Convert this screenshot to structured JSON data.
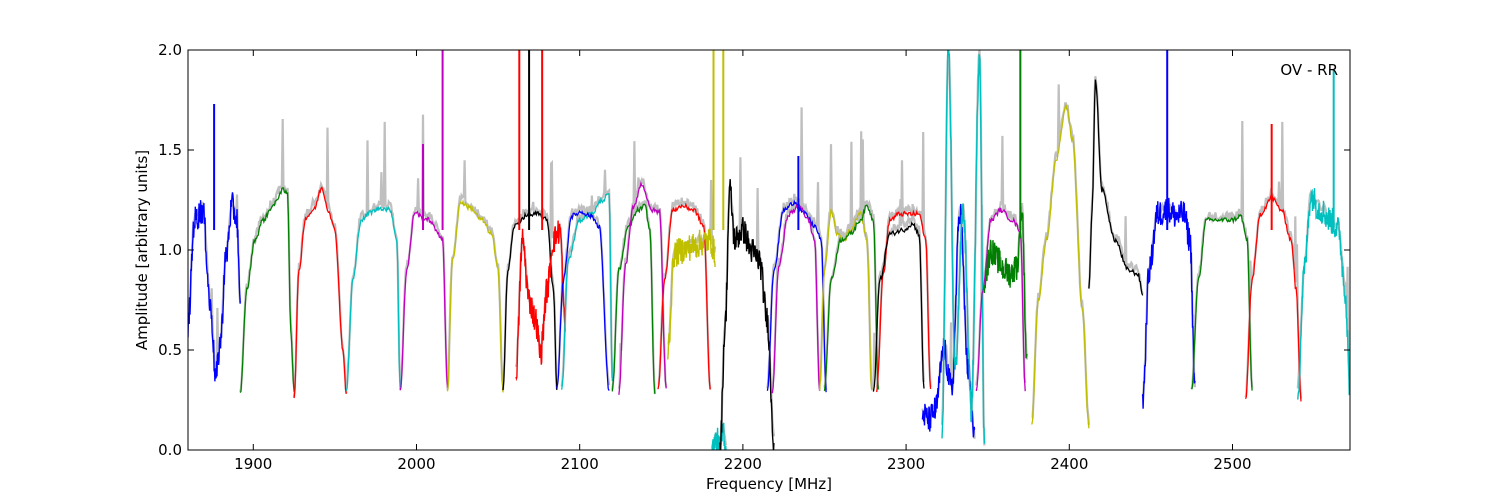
{
  "chart_data": {
    "type": "line",
    "title": "",
    "annotation": "OV - RR",
    "xlabel": "Frequency [MHz]",
    "ylabel": "Amplitude [arbitrary units]",
    "xlim": [
      1860,
      2572
    ],
    "ylim": [
      0.0,
      2.0
    ],
    "xticks": [
      1900,
      2000,
      2100,
      2200,
      2300,
      2400,
      2500
    ],
    "xtick_labels": [
      "1900",
      "2000",
      "2100",
      "2200",
      "2300",
      "2400",
      "2500"
    ],
    "yticks": [
      0.0,
      0.5,
      1.0,
      1.5,
      2.0
    ],
    "ytick_labels": [
      "0.0",
      "0.5",
      "1.0",
      "1.5",
      "2.0"
    ],
    "grid": false,
    "background_color": "#bfbfbf",
    "series": [
      {
        "color": "#0000ff",
        "kind": "noisy",
        "x": [
          1860,
          1864,
          1869,
          1874,
          1877,
          1880,
          1883,
          1887,
          1890,
          1892
        ],
        "y": [
          0.62,
          1.15,
          1.2,
          0.7,
          0.36,
          0.55,
          0.95,
          1.22,
          1.15,
          0.7
        ]
      },
      {
        "color": "#007f00",
        "kind": "band",
        "x": [
          1892,
          1896,
          1901,
          1906,
          1912,
          1918,
          1921,
          1923,
          1925
        ],
        "y": [
          0.28,
          0.8,
          1.05,
          1.15,
          1.22,
          1.3,
          1.28,
          0.6,
          0.3
        ]
      },
      {
        "color": "#ff0000",
        "kind": "band",
        "x": [
          1925,
          1928,
          1932,
          1937,
          1942,
          1946,
          1950,
          1955,
          1957
        ],
        "y": [
          0.25,
          0.9,
          1.16,
          1.2,
          1.31,
          1.2,
          1.1,
          0.5,
          0.27
        ]
      },
      {
        "color": "#00bfbf",
        "kind": "band",
        "x": [
          1957,
          1961,
          1966,
          1972,
          1978,
          1984,
          1988,
          1990
        ],
        "y": [
          0.29,
          0.85,
          1.15,
          1.19,
          1.21,
          1.2,
          1.05,
          0.3
        ]
      },
      {
        "color": "#bf00bf",
        "kind": "band",
        "x": [
          1990,
          1994,
          1999,
          2004,
          2008,
          2012,
          2016,
          2019
        ],
        "y": [
          0.29,
          0.9,
          1.19,
          1.16,
          1.15,
          1.1,
          1.05,
          0.32
        ]
      },
      {
        "color": "#bfbf00",
        "kind": "band",
        "x": [
          2019,
          2022,
          2027,
          2033,
          2040,
          2046,
          2050,
          2053
        ],
        "y": [
          0.29,
          0.95,
          1.24,
          1.21,
          1.15,
          1.08,
          0.9,
          0.3
        ]
      },
      {
        "color": "#000000",
        "kind": "band",
        "x": [
          2053,
          2056,
          2060,
          2067,
          2074,
          2080,
          2084,
          2086
        ],
        "y": [
          0.3,
          0.9,
          1.12,
          1.17,
          1.18,
          1.15,
          0.8,
          0.3
        ]
      },
      {
        "color": "#ff0000",
        "kind": "noisy",
        "x": [
          2061,
          2065,
          2069,
          2073,
          2076,
          2080,
          2084,
          2088,
          2091
        ],
        "y": [
          0.4,
          1.05,
          0.75,
          0.65,
          0.48,
          0.8,
          1.05,
          1.1,
          0.62
        ]
      },
      {
        "color": "#00bfbf",
        "kind": "band",
        "x": [
          2089,
          2093,
          2100,
          2107,
          2114,
          2118,
          2120
        ],
        "y": [
          0.3,
          0.95,
          1.15,
          1.18,
          1.25,
          1.28,
          0.35
        ]
      },
      {
        "color": "#0000ff",
        "kind": "band",
        "x": [
          2086,
          2090,
          2095,
          2101,
          2107,
          2112,
          2118
        ],
        "y": [
          0.3,
          0.85,
          1.17,
          1.19,
          1.17,
          1.12,
          0.3
        ]
      },
      {
        "color": "#007f00",
        "kind": "band",
        "x": [
          2120,
          2124,
          2130,
          2136,
          2140,
          2143,
          2146
        ],
        "y": [
          0.3,
          0.9,
          1.12,
          1.2,
          1.22,
          1.1,
          0.28
        ]
      },
      {
        "color": "#bf00bf",
        "kind": "band",
        "x": [
          2124,
          2128,
          2133,
          2138,
          2144,
          2149,
          2153
        ],
        "y": [
          0.28,
          0.92,
          1.22,
          1.33,
          1.2,
          1.19,
          0.3
        ]
      },
      {
        "color": "#ff0000",
        "kind": "band",
        "x": [
          2148,
          2152,
          2157,
          2163,
          2170,
          2176,
          2180
        ],
        "y": [
          0.3,
          0.85,
          1.2,
          1.22,
          1.2,
          1.12,
          0.3
        ]
      },
      {
        "color": "#bfbf00",
        "kind": "noisy",
        "x": [
          2154,
          2158,
          2163,
          2170,
          2176,
          2180,
          2183
        ],
        "y": [
          0.5,
          0.98,
          1.0,
          1.02,
          1.04,
          1.05,
          0.98
        ]
      },
      {
        "color": "#00bfbf",
        "kind": "noisy",
        "x": [
          2181,
          2184,
          2186,
          2188,
          2190
        ],
        "y": [
          0.0,
          0.05,
          0.0,
          0.1,
          0.0
        ]
      },
      {
        "color": "#000000",
        "kind": "noisy",
        "x": [
          2186,
          2189,
          2192,
          2195,
          2200,
          2205,
          2210,
          2215,
          2219
        ],
        "y": [
          0.0,
          0.6,
          1.3,
          1.05,
          1.1,
          1.0,
          0.95,
          0.65,
          0.05
        ]
      },
      {
        "color": "#0000ff",
        "kind": "band",
        "x": [
          2215,
          2219,
          2225,
          2232,
          2238,
          2244,
          2248,
          2251
        ],
        "y": [
          0.3,
          0.9,
          1.2,
          1.24,
          1.18,
          1.12,
          1.05,
          0.3
        ]
      },
      {
        "color": "#bf00bf",
        "kind": "band",
        "x": [
          2218,
          2222,
          2228,
          2235,
          2240,
          2244,
          2247
        ],
        "y": [
          0.28,
          0.92,
          1.18,
          1.22,
          1.15,
          1.05,
          0.3
        ]
      },
      {
        "color": "#bfbf00",
        "kind": "band",
        "x": [
          2247,
          2250,
          2254,
          2258,
          2262,
          2266,
          2272,
          2276,
          2279
        ],
        "y": [
          0.3,
          0.9,
          1.19,
          1.08,
          1.05,
          1.1,
          1.19,
          1.05,
          0.29
        ]
      },
      {
        "color": "#007f00",
        "kind": "band",
        "x": [
          2250,
          2254,
          2260,
          2266,
          2272,
          2276,
          2280,
          2283
        ],
        "y": [
          0.3,
          0.85,
          1.05,
          1.08,
          1.15,
          1.22,
          1.15,
          0.3
        ]
      },
      {
        "color": "#ff0000",
        "kind": "band",
        "x": [
          2282,
          2286,
          2290,
          2296,
          2303,
          2308,
          2312,
          2315
        ],
        "y": [
          0.3,
          0.88,
          1.15,
          1.18,
          1.18,
          1.18,
          1.05,
          0.3
        ]
      },
      {
        "color": "#000000",
        "kind": "band",
        "x": [
          2280,
          2284,
          2290,
          2298,
          2304,
          2308,
          2311
        ],
        "y": [
          0.29,
          0.85,
          1.08,
          1.1,
          1.13,
          1.08,
          0.3
        ]
      },
      {
        "color": "#0000ff",
        "kind": "noisy",
        "x": [
          2310,
          2314,
          2318,
          2323,
          2328,
          2333,
          2338,
          2342
        ],
        "y": [
          0.18,
          0.15,
          0.2,
          0.5,
          0.3,
          1.2,
          0.4,
          0.05
        ]
      },
      {
        "color": "#00bfbf",
        "kind": "noisy",
        "x": [
          2322,
          2326,
          2330,
          2335,
          2340,
          2345,
          2348
        ],
        "y": [
          0.1,
          2.0,
          0.4,
          1.2,
          0.2,
          2.0,
          0.02
        ]
      },
      {
        "color": "#bf00bf",
        "kind": "band",
        "x": [
          2343,
          2347,
          2352,
          2358,
          2365,
          2370,
          2373
        ],
        "y": [
          0.3,
          0.8,
          1.15,
          1.2,
          1.15,
          1.1,
          0.3
        ]
      },
      {
        "color": "#007f00",
        "kind": "noisy",
        "x": [
          2348,
          2352,
          2356,
          2360,
          2364,
          2368,
          2371,
          2374
        ],
        "y": [
          0.85,
          1.0,
          0.95,
          0.9,
          0.88,
          0.92,
          1.2,
          0.45
        ]
      },
      {
        "color": "#bfbf00",
        "kind": "band",
        "x": [
          2377,
          2381,
          2386,
          2392,
          2398,
          2402,
          2408,
          2412
        ],
        "y": [
          0.13,
          0.75,
          1.05,
          1.45,
          1.72,
          1.55,
          0.7,
          0.12
        ]
      },
      {
        "color": "#000000",
        "kind": "band",
        "x": [
          2412,
          2414,
          2416,
          2420,
          2428,
          2436,
          2442,
          2445
        ],
        "y": [
          0.8,
          1.2,
          1.85,
          1.3,
          1.05,
          0.9,
          0.88,
          0.78
        ]
      },
      {
        "color": "#0000ff",
        "kind": "noisy",
        "x": [
          2445,
          2449,
          2454,
          2460,
          2466,
          2470,
          2474,
          2477
        ],
        "y": [
          0.25,
          0.9,
          1.18,
          1.2,
          1.17,
          1.18,
          1.05,
          0.3
        ]
      },
      {
        "color": "#007f00",
        "kind": "band",
        "x": [
          2475,
          2479,
          2484,
          2492,
          2500,
          2505,
          2509,
          2512
        ],
        "y": [
          0.3,
          0.85,
          1.15,
          1.15,
          1.15,
          1.17,
          1.05,
          0.3
        ]
      },
      {
        "color": "#ff0000",
        "kind": "band",
        "x": [
          2508,
          2512,
          2517,
          2524,
          2530,
          2536,
          2539,
          2542
        ],
        "y": [
          0.25,
          0.85,
          1.18,
          1.26,
          1.2,
          1.05,
          0.8,
          0.25
        ]
      },
      {
        "color": "#00bfbf",
        "kind": "noisy",
        "x": [
          2540,
          2544,
          2548,
          2554,
          2560,
          2565,
          2569,
          2572
        ],
        "y": [
          0.3,
          0.9,
          1.27,
          1.2,
          1.15,
          1.1,
          0.8,
          0.3
        ]
      }
    ],
    "spikes": [
      {
        "color": "#0000ff",
        "x": 1876,
        "y": 1.73
      },
      {
        "color": "#bf00bf",
        "x": 2004,
        "y": 1.53
      },
      {
        "color": "#bf00bf",
        "x": 2016,
        "y": 2.0
      },
      {
        "color": "#ff0000",
        "x": 2063,
        "y": 2.0
      },
      {
        "color": "#000000",
        "x": 2069,
        "y": 2.0
      },
      {
        "color": "#ff0000",
        "x": 2077,
        "y": 2.0
      },
      {
        "color": "#bfbf00",
        "x": 2182,
        "y": 2.0
      },
      {
        "color": "#bfbf00",
        "x": 2188,
        "y": 2.0
      },
      {
        "color": "#0000ff",
        "x": 2234,
        "y": 1.47
      },
      {
        "color": "#007f00",
        "x": 2370,
        "y": 2.0
      },
      {
        "color": "#0000ff",
        "x": 2460,
        "y": 2.0
      },
      {
        "color": "#ff0000",
        "x": 2524,
        "y": 1.63
      },
      {
        "color": "#00bfbf",
        "x": 2562,
        "y": 1.9
      }
    ]
  }
}
